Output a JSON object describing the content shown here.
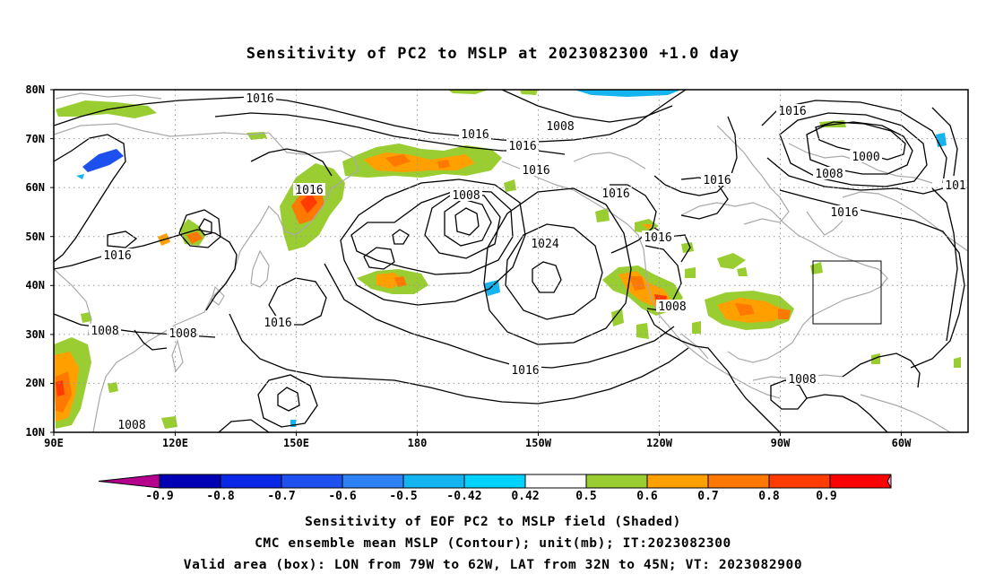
{
  "title": "Sensitivity of PC2 to MSLP at 2023082300 +1.0 day",
  "map": {
    "lat_labels": [
      "80N",
      "70N",
      "60N",
      "50N",
      "40N",
      "30N",
      "20N",
      "10N"
    ],
    "lon_labels": [
      "90E",
      "120E",
      "150E",
      "180",
      "150W",
      "120W",
      "90W",
      "60W"
    ],
    "gridlines": "dotted",
    "coastline_color": "#a9a9a9",
    "contour_color": "#000000",
    "contour_labels": [
      "1016",
      "1008",
      "1016",
      "1016",
      "1016",
      "1016",
      "1008",
      "1016",
      "1016",
      "1024",
      "1016",
      "1008",
      "1016",
      "1000",
      "1008",
      "1016",
      "101",
      "1016",
      "1016",
      "1008",
      "1008",
      "1016",
      "1008",
      "1008"
    ],
    "valid_area_box": {
      "lon_from": "79W",
      "lon_to": "62W",
      "lat_from": "32N",
      "lat_to": "45N"
    }
  },
  "colorbar": {
    "colors": [
      "#b4008c",
      "#0000b4",
      "#0a28e6",
      "#1e50f0",
      "#2e82f5",
      "#14b4f0",
      "#00d2ff",
      "#ffffff",
      "#9acd32",
      "#ffa000",
      "#ff7800",
      "#ff3c00",
      "#ff0000",
      "#ff9fc8"
    ],
    "labels": [
      "-0.9",
      "-0.8",
      "-0.7",
      "-0.6",
      "-0.5",
      "-0.42",
      "0.42",
      "0.5",
      "0.6",
      "0.7",
      "0.8",
      "0.9"
    ]
  },
  "captions": {
    "line1": "Sensitivity of EOF PC2 to MSLP field (Shaded)",
    "line2": "CMC ensemble mean MSLP (Contour); unit(mb); IT:2023082300",
    "line3": "Valid area (box): LON from 79W to 62W, LAT from 32N to 45N; VT: 2023082900"
  }
}
